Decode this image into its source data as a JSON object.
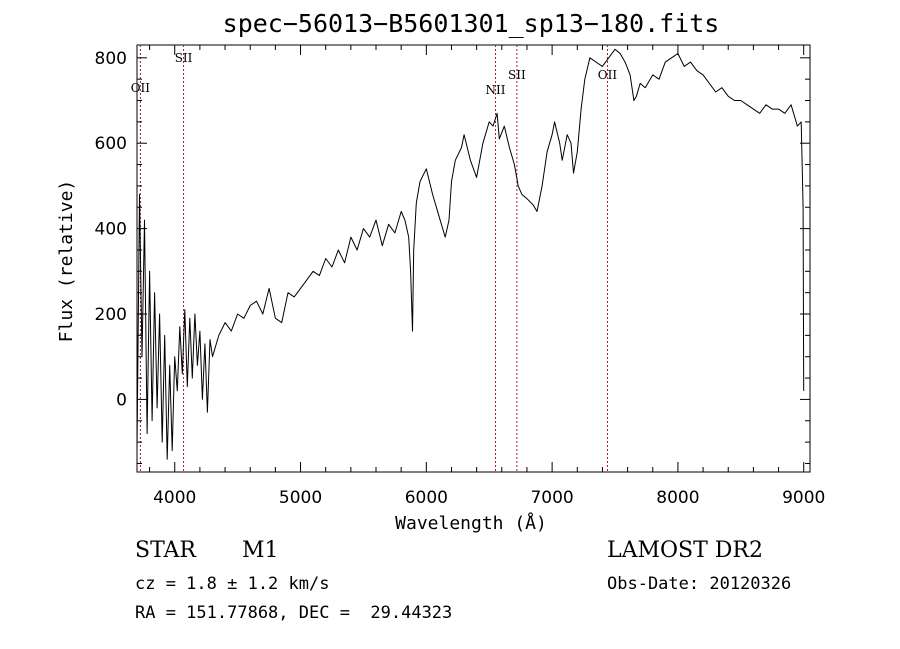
{
  "chart_data": {
    "type": "line",
    "title": "spec−56013−B5601301_sp13−180.fits",
    "xlabel": "Wavelength (Å)",
    "ylabel": "Flux (relative)",
    "xlim": [
      3700,
      9050
    ],
    "ylim": [
      -170,
      830
    ],
    "xticks": [
      4000,
      5000,
      6000,
      7000,
      8000,
      9000
    ],
    "yticks": [
      0,
      200,
      400,
      600,
      800
    ],
    "grid": false,
    "line_color": "#000000",
    "marker_color": "#aa2222",
    "series": [
      {
        "x": [
          3700,
          3720,
          3740,
          3760,
          3780,
          3800,
          3820,
          3840,
          3860,
          3880,
          3900,
          3920,
          3940,
          3960,
          3980,
          4000,
          4020,
          4040,
          4060,
          4080,
          4100,
          4120,
          4140,
          4160,
          4180,
          4200,
          4220,
          4240,
          4260,
          4280,
          4300,
          4350,
          4400,
          4450,
          4500,
          4550,
          4600,
          4650,
          4700,
          4750,
          4800,
          4850,
          4900,
          4950,
          5000,
          5050,
          5100,
          5150,
          5200,
          5250,
          5300,
          5350,
          5400,
          5450,
          5500,
          5550,
          5600,
          5650,
          5700,
          5750,
          5800,
          5830,
          5860,
          5875,
          5890,
          5900,
          5920,
          5950,
          6000,
          6050,
          6100,
          6150,
          6180,
          6200,
          6230,
          6280,
          6300,
          6350,
          6400,
          6450,
          6500,
          6530,
          6563,
          6580,
          6620,
          6660,
          6700,
          6730,
          6760,
          6800,
          6850,
          6880,
          6920,
          6960,
          7000,
          7020,
          7060,
          7080,
          7120,
          7150,
          7170,
          7200,
          7230,
          7260,
          7300,
          7350,
          7400,
          7450,
          7500,
          7540,
          7580,
          7620,
          7650,
          7670,
          7700,
          7740,
          7800,
          7850,
          7900,
          7950,
          8000,
          8050,
          8100,
          8150,
          8200,
          8250,
          8300,
          8350,
          8400,
          8450,
          8500,
          8550,
          8600,
          8650,
          8700,
          8750,
          8800,
          8850,
          8900,
          8950,
          8980,
          8995,
          9000
        ],
        "y": [
          -120,
          480,
          100,
          420,
          -80,
          300,
          -50,
          250,
          -20,
          200,
          -100,
          150,
          -140,
          80,
          -120,
          100,
          20,
          170,
          60,
          210,
          30,
          190,
          50,
          200,
          80,
          160,
          0,
          130,
          -30,
          140,
          100,
          150,
          180,
          160,
          200,
          190,
          220,
          230,
          200,
          260,
          190,
          180,
          250,
          240,
          260,
          280,
          300,
          290,
          330,
          310,
          350,
          320,
          380,
          350,
          400,
          380,
          420,
          360,
          410,
          390,
          440,
          420,
          380,
          300,
          160,
          350,
          460,
          510,
          540,
          480,
          430,
          380,
          420,
          510,
          560,
          590,
          620,
          560,
          520,
          600,
          650,
          640,
          670,
          610,
          640,
          590,
          550,
          500,
          480,
          470,
          455,
          440,
          500,
          580,
          620,
          650,
          600,
          560,
          620,
          600,
          530,
          580,
          680,
          750,
          800,
          790,
          780,
          800,
          820,
          810,
          790,
          760,
          700,
          710,
          740,
          730,
          760,
          750,
          790,
          800,
          810,
          780,
          790,
          770,
          760,
          740,
          720,
          730,
          710,
          700,
          700,
          690,
          680,
          670,
          690,
          680,
          680,
          670,
          690,
          640,
          650,
          450,
          20
        ]
      }
    ],
    "lines": [
      {
        "label": "OII",
        "x": 3727,
        "label_y": 720
      },
      {
        "label": "SII",
        "x": 4070,
        "label_y": 790
      },
      {
        "label": "NII",
        "x": 6550,
        "label_y": 715
      },
      {
        "label": "SII",
        "x": 6720,
        "label_y": 750
      },
      {
        "label": "OII",
        "x": 7440,
        "label_y": 750
      }
    ]
  },
  "info": {
    "class_type": "STAR",
    "subclass": "M1",
    "cz": "cz = 1.8 ± 1.2 km/s",
    "coords": "RA = 151.77868, DEC =  29.44323",
    "survey": "LAMOST DR2",
    "obs_date": "Obs-Date: 20120326"
  }
}
